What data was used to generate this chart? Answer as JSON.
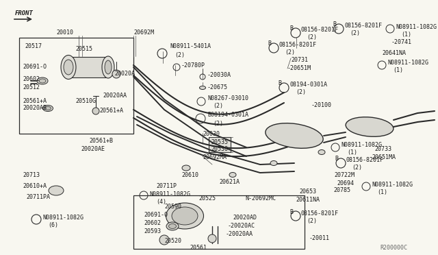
{
  "bg_color": "#f0efe8",
  "line_color": "#2a2a2a",
  "text_color": "#1a1a1a",
  "fig_w": 6.4,
  "fig_h": 3.72,
  "dpi": 100,
  "xlim": [
    0,
    640
  ],
  "ylim": [
    0,
    372
  ]
}
